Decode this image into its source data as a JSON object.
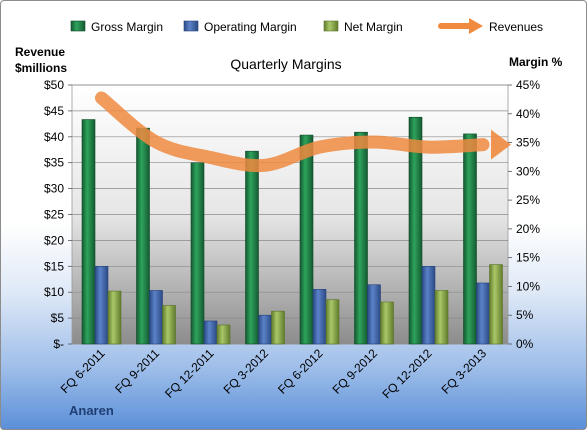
{
  "chart_data": {
    "type": "bar",
    "title": "Quarterly Margins",
    "footer": "Anaren",
    "ylabel_left": [
      "Revenue",
      "$millions"
    ],
    "ylabel_right": "Margin %",
    "y_left_ticks": [
      "$50",
      "$45",
      "$40",
      "$35",
      "$30",
      "$25",
      "$20",
      "$15",
      "$10",
      "$5",
      "$-"
    ],
    "y_right_ticks": [
      "45%",
      "40%",
      "35%",
      "30%",
      "25%",
      "20%",
      "15%",
      "10%",
      "5%",
      "0%"
    ],
    "ylim_left": [
      0,
      50
    ],
    "ylim_right": [
      0,
      45
    ],
    "legend_position": "top",
    "categories": [
      "FQ 6-2011",
      "FQ 9-2011",
      "FQ 12-2011",
      "FQ 3-2012",
      "FQ 6-2012",
      "FQ 9-2012",
      "FQ 12-2012",
      "FQ 3-2013"
    ],
    "series": [
      {
        "name": "Gross Margin",
        "axis": "right",
        "kind": "bar",
        "color": "#1e7d46",
        "values": [
          39,
          37.5,
          31.5,
          33.5,
          36.3,
          36.8,
          39.4,
          36.5
        ]
      },
      {
        "name": "Operating Margin",
        "axis": "right",
        "kind": "bar",
        "color": "#3f64a8",
        "values": [
          13.5,
          9.3,
          4,
          5,
          9.5,
          10.3,
          13.5,
          10.6
        ]
      },
      {
        "name": "Net Margin",
        "axis": "right",
        "kind": "bar",
        "color": "#8bab4a",
        "values": [
          9.2,
          6.7,
          3.3,
          5.7,
          7.7,
          7.3,
          9.3,
          13.8
        ]
      },
      {
        "name": "Revenues",
        "axis": "left",
        "kind": "line",
        "color": "#ef8a3f",
        "values": [
          47.5,
          39,
          36,
          34.5,
          38,
          39,
          38,
          38.5
        ]
      }
    ]
  }
}
